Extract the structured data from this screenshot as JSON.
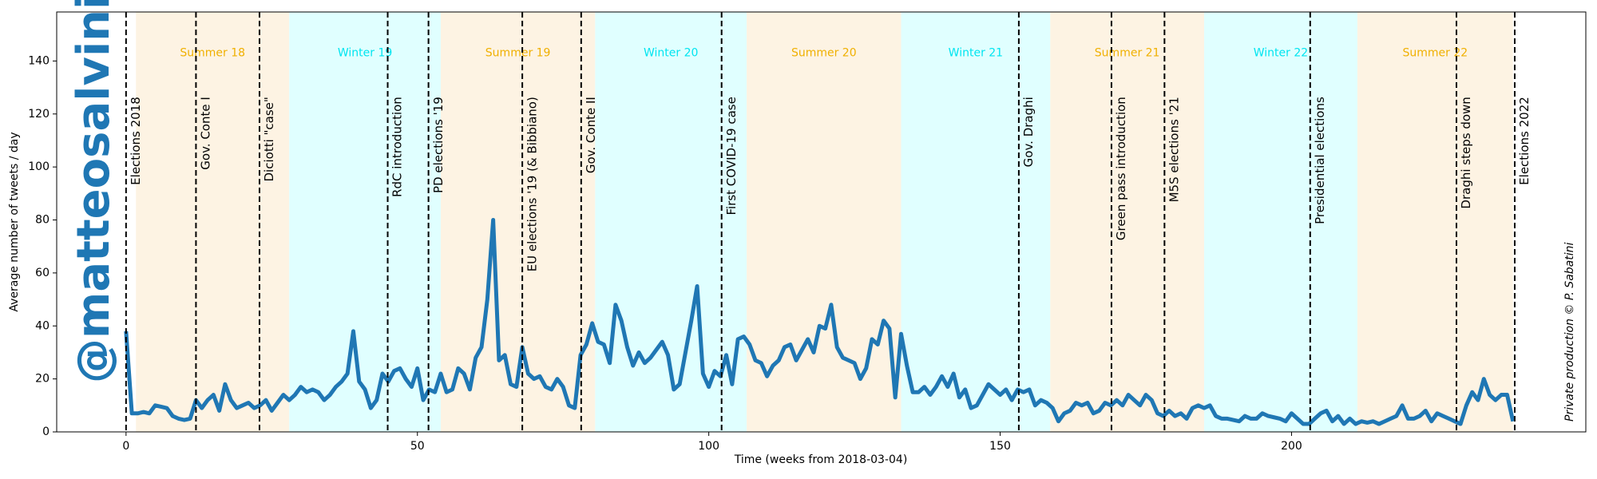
{
  "chart_data": {
    "type": "line",
    "xlabel": "Time (weeks from 2018-03-04)",
    "ylabel": "Average number of tweets / day",
    "watermark": "@matteosalvinimi",
    "credit": "Private production © P. Sabatini",
    "xlim": [
      -11.9,
      250.5
    ],
    "ylim": [
      0,
      158.5
    ],
    "xticks": [
      0,
      50,
      100,
      150,
      200
    ],
    "yticks": [
      0,
      20,
      40,
      60,
      80,
      100,
      120,
      140
    ],
    "x": [
      0,
      1,
      2,
      3,
      4,
      5,
      6,
      7,
      8,
      9,
      10,
      11,
      12,
      13,
      14,
      15,
      16,
      17,
      18,
      19,
      20,
      21,
      22,
      23,
      24,
      25,
      26,
      27,
      28,
      29,
      30,
      31,
      32,
      33,
      34,
      35,
      36,
      37,
      38,
      39,
      40,
      41,
      42,
      43,
      44,
      45,
      46,
      47,
      48,
      49,
      50,
      51,
      52,
      53,
      54,
      55,
      56,
      57,
      58,
      59,
      60,
      61,
      62,
      63,
      64,
      65,
      66,
      67,
      68,
      69,
      70,
      71,
      72,
      73,
      74,
      75,
      76,
      77,
      78,
      79,
      80,
      81,
      82,
      83,
      84,
      85,
      86,
      87,
      88,
      89,
      90,
      91,
      92,
      93,
      94,
      95,
      96,
      97,
      98,
      99,
      100,
      101,
      102,
      103,
      104,
      105,
      106,
      107,
      108,
      109,
      110,
      111,
      112,
      113,
      114,
      115,
      116,
      117,
      118,
      119,
      120,
      121,
      122,
      123,
      124,
      125,
      126,
      127,
      128,
      129,
      130,
      131,
      132,
      133,
      134,
      135,
      136,
      137,
      138,
      139,
      140,
      141,
      142,
      143,
      144,
      145,
      146,
      147,
      148,
      149,
      150,
      151,
      152,
      153,
      154,
      155,
      156,
      157,
      158,
      159,
      160,
      161,
      162,
      163,
      164,
      165,
      166,
      167,
      168,
      169,
      170,
      171,
      172,
      173,
      174,
      175,
      176,
      177,
      178,
      179,
      180,
      181,
      182,
      183,
      184,
      185,
      186,
      187,
      188,
      189,
      190,
      191,
      192,
      193,
      194,
      195,
      196,
      197,
      198,
      199,
      200,
      201,
      202,
      203,
      204,
      205,
      206,
      207,
      208,
      209,
      210,
      211,
      212,
      213,
      214,
      215,
      216,
      217,
      218,
      219,
      220,
      221,
      222,
      223,
      224,
      225,
      226,
      227,
      228,
      229,
      230,
      231,
      232,
      233,
      234,
      235,
      236,
      237,
      238
    ],
    "series": [
      {
        "color": "#1f77b4",
        "values": [
          38,
          7,
          7,
          7.5,
          7,
          10,
          9.5,
          9,
          6,
          5,
          4.5,
          5,
          12,
          9,
          12,
          14,
          8,
          18,
          12,
          9,
          10,
          11,
          9,
          10,
          12,
          8,
          11,
          14,
          12,
          14,
          17,
          15,
          16,
          15,
          12,
          14,
          17,
          19,
          22,
          38,
          19,
          16,
          9,
          12,
          22,
          19,
          23,
          24,
          20,
          17,
          24,
          12,
          16,
          15,
          22,
          15,
          16,
          24,
          22,
          16,
          28,
          32,
          50,
          80,
          27,
          29,
          18,
          17,
          32,
          22,
          20,
          21,
          17,
          16,
          20,
          17,
          10,
          9,
          29,
          33,
          41,
          34,
          33,
          26,
          48,
          42,
          32,
          25,
          30,
          26,
          28,
          31,
          34,
          29,
          16,
          18,
          30,
          42,
          55,
          22,
          17,
          23,
          21,
          29,
          18,
          35,
          36,
          33,
          27,
          26,
          21,
          25,
          27,
          32,
          33,
          27,
          31,
          35,
          30,
          40,
          39,
          48,
          32,
          28,
          27,
          26,
          20,
          24,
          35,
          33,
          42,
          39,
          13,
          37,
          25,
          15,
          15,
          17,
          14,
          17,
          21,
          17,
          22,
          13,
          16,
          9,
          10,
          14,
          18,
          16,
          14,
          16,
          12,
          16,
          15,
          16,
          10,
          12,
          11,
          9,
          4,
          7,
          8,
          11,
          10,
          11,
          7,
          8,
          11,
          10,
          12,
          10,
          14,
          12,
          10,
          14,
          12,
          7,
          6,
          8,
          6,
          7,
          5,
          9,
          10,
          9,
          10,
          6,
          5,
          5,
          4.5,
          4,
          6,
          5,
          5,
          7,
          6,
          5.5,
          5,
          4,
          7,
          5,
          3,
          3,
          5,
          7,
          8,
          4,
          6,
          3,
          5,
          3,
          4,
          3.5,
          4,
          3,
          4,
          5,
          6,
          10,
          5,
          5,
          6,
          8,
          4,
          7,
          6,
          5,
          4,
          3,
          10,
          15,
          12,
          20,
          14,
          12,
          14,
          14,
          4
        ]
      }
    ],
    "periods": [
      {
        "label": "Summer 18",
        "start": 1.7,
        "end": 28,
        "color": "#fdf3e3",
        "label_color": "#f0b000"
      },
      {
        "label": "Winter 19",
        "start": 28,
        "end": 54,
        "color": "#e0ffff",
        "label_color": "#00e5f0"
      },
      {
        "label": "Summer 19",
        "start": 54,
        "end": 80.5,
        "color": "#fdf3e3",
        "label_color": "#f0b000"
      },
      {
        "label": "Winter 20",
        "start": 80.5,
        "end": 106.5,
        "color": "#e0ffff",
        "label_color": "#00e5f0"
      },
      {
        "label": "Summer 20",
        "start": 106.5,
        "end": 133,
        "color": "#fdf3e3",
        "label_color": "#f0b000"
      },
      {
        "label": "Winter 21",
        "start": 133,
        "end": 158.6,
        "color": "#e0ffff",
        "label_color": "#00e5f0"
      },
      {
        "label": "Summer 21",
        "start": 158.6,
        "end": 185,
        "color": "#fdf3e3",
        "label_color": "#f0b000"
      },
      {
        "label": "Winter 22",
        "start": 185,
        "end": 211.3,
        "color": "#e0ffff",
        "label_color": "#00e5f0"
      },
      {
        "label": "Summer 22",
        "start": 211.3,
        "end": 238,
        "color": "#fdf3e3",
        "label_color": "#f0b000"
      }
    ],
    "period_label_y": 143,
    "event_label_top": 126.5,
    "events": [
      {
        "x": 0,
        "label": "Elections 2018"
      },
      {
        "x": 12,
        "label": "Gov. Conte I"
      },
      {
        "x": 22.9,
        "label": "Diciotti \"case\""
      },
      {
        "x": 44.9,
        "label": "RdC introduction"
      },
      {
        "x": 51.9,
        "label": "PD elections '19"
      },
      {
        "x": 68,
        "label": "EU elections '19 (& Bibbiano)"
      },
      {
        "x": 78.1,
        "label": "Gov. Conte II"
      },
      {
        "x": 102.2,
        "label": "First COVID-19 case"
      },
      {
        "x": 153.2,
        "label": "Gov. Draghi"
      },
      {
        "x": 169.1,
        "label": "Green pass introduction"
      },
      {
        "x": 178.2,
        "label": "M5S elections '21"
      },
      {
        "x": 203.2,
        "label": "Presidential elections"
      },
      {
        "x": 228.3,
        "label": "Draghi steps down"
      },
      {
        "x": 238.3,
        "label": "Elections 2022"
      }
    ]
  }
}
